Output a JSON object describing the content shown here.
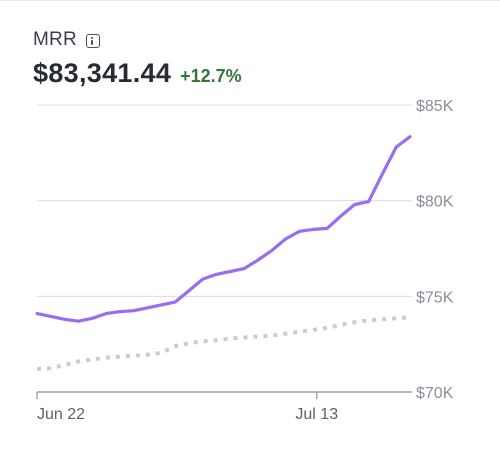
{
  "metric": {
    "label": "MRR",
    "value": "$83,341.44",
    "change": "+12.7%",
    "info_icon": "info-icon"
  },
  "colors": {
    "primary_line": "#9b6cf0",
    "comparison_line": "#c8ccd4",
    "change_positive": "#34763a",
    "gridline": "#d9dce1"
  },
  "chart_data": {
    "type": "line",
    "title": "",
    "xlabel": "",
    "ylabel": "",
    "x_ticks": [
      {
        "label": "Jun 22",
        "x": 0
      },
      {
        "label": "Jul 13",
        "x": 21
      }
    ],
    "y_ticks": [
      {
        "label": "$70K",
        "value": 70000
      },
      {
        "label": "$75K",
        "value": 75000
      },
      {
        "label": "$80K",
        "value": 80000
      },
      {
        "label": "$85K",
        "value": 85000
      }
    ],
    "xlim": [
      0,
      28
    ],
    "ylim": [
      70000,
      85000
    ],
    "grid": "horizontal",
    "legend": "none",
    "series": [
      {
        "role": "current",
        "style": "solid",
        "values": [
          74100,
          73950,
          73800,
          73700,
          73850,
          74100,
          74200,
          74250,
          74400,
          74550,
          74700,
          75300,
          75900,
          76150,
          76300,
          76450,
          76900,
          77400,
          78000,
          78400,
          78500,
          78550,
          79200,
          79800,
          79950,
          81400,
          82800,
          83341
        ]
      },
      {
        "role": "comparison",
        "style": "dotted",
        "values": [
          71200,
          71250,
          71400,
          71600,
          71700,
          71800,
          71850,
          71900,
          71950,
          72050,
          72400,
          72550,
          72650,
          72700,
          72800,
          72850,
          72900,
          72950,
          73050,
          73150,
          73250,
          73350,
          73500,
          73650,
          73750,
          73800,
          73850,
          73900
        ]
      }
    ]
  }
}
